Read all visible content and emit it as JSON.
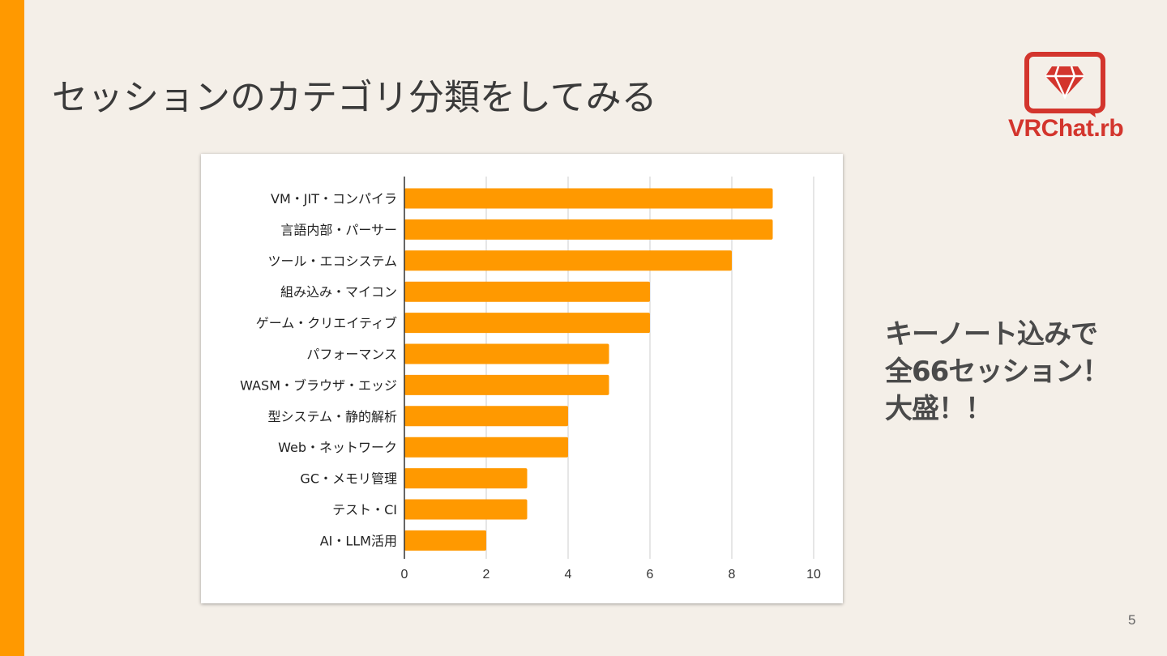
{
  "slide": {
    "title": "セッションのカテゴリ分類をしてみる",
    "page_number": "5",
    "accent_color": "#ff9900",
    "background_color": "#f4efe8"
  },
  "logo": {
    "text": "VRChat.rb",
    "icon": "ruby-gem-speech-bubble-icon",
    "color": "#d3352d"
  },
  "callout": {
    "lines": [
      "キーノート込みで",
      "全66セッション！",
      "大盛！！"
    ]
  },
  "chart_data": {
    "type": "bar",
    "orientation": "horizontal",
    "categories": [
      "VM・JIT・コンパイラ",
      "言語内部・パーサー",
      "ツール・エコシステム",
      "組み込み・マイコン",
      "ゲーム・クリエイティブ",
      "パフォーマンス",
      "WASM・ブラウザ・エッジ",
      "型システム・静的解析",
      "Web・ネットワーク",
      "GC・メモリ管理",
      "テスト・CI",
      "AI・LLM活用"
    ],
    "values": [
      9,
      9,
      8,
      6,
      6,
      5,
      5,
      4,
      4,
      3,
      3,
      2
    ],
    "xlim": [
      0,
      10
    ],
    "xticks": [
      "0",
      "2",
      "4",
      "6",
      "8",
      "10"
    ],
    "grid": true,
    "bar_color": "#ff9900"
  }
}
